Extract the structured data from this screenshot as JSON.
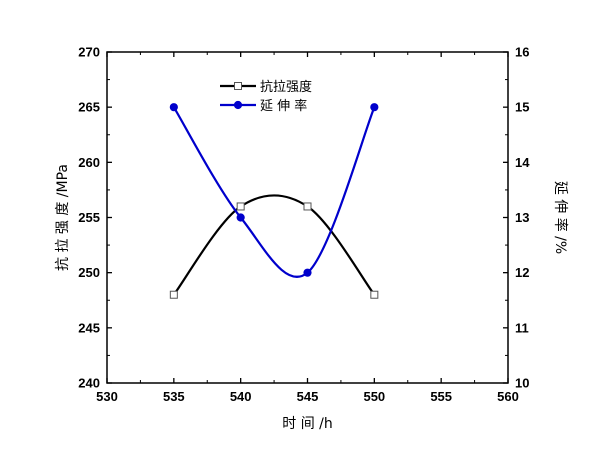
{
  "chart_data": {
    "type": "line",
    "x": [
      535,
      540,
      545,
      550
    ],
    "xlabel": "时 间 /h",
    "xlim": [
      530,
      560
    ],
    "xticks": [
      530,
      535,
      540,
      545,
      550,
      555,
      560
    ],
    "ylabel_left": "抗 拉 强 度 /MPa",
    "ylim_left": [
      240,
      270
    ],
    "yticks_left": [
      240,
      245,
      250,
      255,
      260,
      265,
      270
    ],
    "ylabel_right": "延 伸 率 /%",
    "ylim_right": [
      10,
      16
    ],
    "yticks_right": [
      10,
      11,
      12,
      13,
      14,
      15,
      16
    ],
    "legend_position": "top-center",
    "grid": false,
    "series": [
      {
        "name": "抗拉强度",
        "axis": "left",
        "color": "#000000",
        "marker": "open-square",
        "values": [
          248,
          256,
          256,
          248
        ]
      },
      {
        "name": "延 伸 率",
        "axis": "right",
        "color": "#0000cc",
        "marker": "filled-circle",
        "values": [
          15,
          13,
          12,
          15
        ]
      }
    ]
  }
}
